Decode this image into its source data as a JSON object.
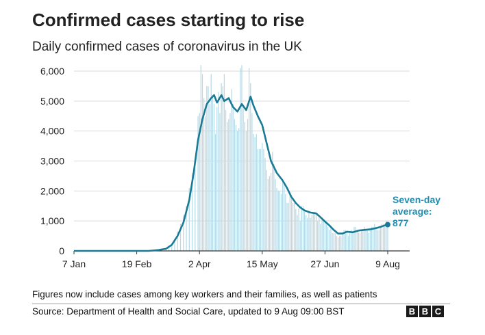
{
  "title": "Confirmed cases starting to rise",
  "subtitle": "Daily confirmed cases of coronavirus in the UK",
  "footnote": "Figures now include cases among key workers and their families, as well as patients",
  "source": "Source: Department of Health and Social Care, updated to 9 Aug 09:00 BST",
  "logo_letters": [
    "B",
    "B",
    "C"
  ],
  "annotation": {
    "line1": "Seven-day",
    "line2": "average:",
    "value": "877"
  },
  "colors": {
    "bars": "#b7dbe8",
    "line": "#1a7a95",
    "annotation": "#1f8db0",
    "grid": "#d9d9d9",
    "axis": "#333333"
  },
  "chart_data": {
    "type": "bar",
    "x_start": "2020-01-07",
    "x_end": "2020-08-09",
    "ylim": [
      0,
      6000
    ],
    "yticks": [
      0,
      1000,
      2000,
      3000,
      4000,
      5000,
      6000
    ],
    "ytick_labels": [
      "0",
      "1,000",
      "2,000",
      "3,000",
      "4,000",
      "5,000",
      "6,000"
    ],
    "xticks": [
      "2020-01-07",
      "2020-02-19",
      "2020-04-02",
      "2020-05-15",
      "2020-06-27",
      "2020-08-09"
    ],
    "xtick_labels": [
      "7 Jan",
      "19 Feb",
      "2 Apr",
      "15 May",
      "27 Jun",
      "9 Aug"
    ],
    "grid": true,
    "series": [
      {
        "type": "bar",
        "points": [
          [
            "2020-03-01",
            10
          ],
          [
            "2020-03-04",
            30
          ],
          [
            "2020-03-07",
            50
          ],
          [
            "2020-03-10",
            70
          ],
          [
            "2020-03-12",
            130
          ],
          [
            "2020-03-14",
            250
          ],
          [
            "2020-03-16",
            400
          ],
          [
            "2020-03-18",
            650
          ],
          [
            "2020-03-20",
            900
          ],
          [
            "2020-03-22",
            1200
          ],
          [
            "2020-03-24",
            1500
          ],
          [
            "2020-03-26",
            2100
          ],
          [
            "2020-03-28",
            2600
          ],
          [
            "2020-03-30",
            2800
          ],
          [
            "2020-04-01",
            4500
          ],
          [
            "2020-04-02",
            4600
          ],
          [
            "2020-04-03",
            6200
          ],
          [
            "2020-04-04",
            5900
          ],
          [
            "2020-04-05",
            5100
          ],
          [
            "2020-04-06",
            4500
          ],
          [
            "2020-04-07",
            5500
          ],
          [
            "2020-04-08",
            5500
          ],
          [
            "2020-04-09",
            4900
          ],
          [
            "2020-04-10",
            5900
          ],
          [
            "2020-04-11",
            5200
          ],
          [
            "2020-04-12",
            4900
          ],
          [
            "2020-04-13",
            3900
          ],
          [
            "2020-04-14",
            4800
          ],
          [
            "2020-04-15",
            5300
          ],
          [
            "2020-04-16",
            4600
          ],
          [
            "2020-04-17",
            5600
          ],
          [
            "2020-04-18",
            5500
          ],
          [
            "2020-04-19",
            5900
          ],
          [
            "2020-04-20",
            4700
          ],
          [
            "2020-04-21",
            4300
          ],
          [
            "2020-04-22",
            4400
          ],
          [
            "2020-04-23",
            4600
          ],
          [
            "2020-04-24",
            5400
          ],
          [
            "2020-04-25",
            4900
          ],
          [
            "2020-04-26",
            4400
          ],
          [
            "2020-04-27",
            4200
          ],
          [
            "2020-04-28",
            4000
          ],
          [
            "2020-04-29",
            4100
          ],
          [
            "2020-04-30",
            6100
          ],
          [
            "2020-05-01",
            6200
          ],
          [
            "2020-05-02",
            4800
          ],
          [
            "2020-05-03",
            4300
          ],
          [
            "2020-05-04",
            4000
          ],
          [
            "2020-05-05",
            4400
          ],
          [
            "2020-05-06",
            6100
          ],
          [
            "2020-05-07",
            5600
          ],
          [
            "2020-05-08",
            4600
          ],
          [
            "2020-05-09",
            3900
          ],
          [
            "2020-05-10",
            3800
          ],
          [
            "2020-05-11",
            3900
          ],
          [
            "2020-05-12",
            3400
          ],
          [
            "2020-05-13",
            3400
          ],
          [
            "2020-05-14",
            3400
          ],
          [
            "2020-05-15",
            3600
          ],
          [
            "2020-05-16",
            3400
          ],
          [
            "2020-05-17",
            3100
          ],
          [
            "2020-05-18",
            2700
          ],
          [
            "2020-05-19",
            2400
          ],
          [
            "2020-05-20",
            2500
          ],
          [
            "2020-05-21",
            2600
          ],
          [
            "2020-05-22",
            3300
          ],
          [
            "2020-05-23",
            2900
          ],
          [
            "2020-05-24",
            2400
          ],
          [
            "2020-05-25",
            2100
          ],
          [
            "2020-05-26",
            2000
          ],
          [
            "2020-05-27",
            2000
          ],
          [
            "2020-05-28",
            1900
          ],
          [
            "2020-05-29",
            2400
          ],
          [
            "2020-05-30",
            2300
          ],
          [
            "2020-05-31",
            1900
          ],
          [
            "2020-06-01",
            1600
          ],
          [
            "2020-06-02",
            1600
          ],
          [
            "2020-06-03",
            1900
          ],
          [
            "2020-06-04",
            1800
          ],
          [
            "2020-06-05",
            1600
          ],
          [
            "2020-06-06",
            1600
          ],
          [
            "2020-06-07",
            1400
          ],
          [
            "2020-06-08",
            1200
          ],
          [
            "2020-06-09",
            1400
          ],
          [
            "2020-06-10",
            1000
          ],
          [
            "2020-06-11",
            1500
          ],
          [
            "2020-06-12",
            1500
          ],
          [
            "2020-06-13",
            1400
          ],
          [
            "2020-06-14",
            1200
          ],
          [
            "2020-06-15",
            1100
          ],
          [
            "2020-06-16",
            1300
          ],
          [
            "2020-06-17",
            1100
          ],
          [
            "2020-06-18",
            1200
          ],
          [
            "2020-06-19",
            1300
          ],
          [
            "2020-06-20",
            1300
          ],
          [
            "2020-06-21",
            1200
          ],
          [
            "2020-06-22",
            1000
          ],
          [
            "2020-06-23",
            1100
          ],
          [
            "2020-06-24",
            900
          ],
          [
            "2020-06-25",
            1100
          ],
          [
            "2020-06-26",
            1000
          ],
          [
            "2020-06-27",
            1000
          ],
          [
            "2020-06-28",
            900
          ],
          [
            "2020-06-29",
            800
          ],
          [
            "2020-06-30",
            700
          ],
          [
            "2020-07-01",
            800
          ],
          [
            "2020-07-02",
            600
          ],
          [
            "2020-07-03",
            600
          ],
          [
            "2020-07-04",
            600
          ],
          [
            "2020-07-05",
            500
          ],
          [
            "2020-07-06",
            450
          ],
          [
            "2020-07-07",
            500
          ],
          [
            "2020-07-08",
            500
          ],
          [
            "2020-07-09",
            600
          ],
          [
            "2020-07-10",
            700
          ],
          [
            "2020-07-11",
            700
          ],
          [
            "2020-07-12",
            600
          ],
          [
            "2020-07-13",
            500
          ],
          [
            "2020-07-14",
            600
          ],
          [
            "2020-07-15",
            700
          ],
          [
            "2020-07-16",
            600
          ],
          [
            "2020-07-17",
            800
          ],
          [
            "2020-07-18",
            800
          ],
          [
            "2020-07-19",
            700
          ],
          [
            "2020-07-20",
            600
          ],
          [
            "2020-07-21",
            600
          ],
          [
            "2020-07-22",
            700
          ],
          [
            "2020-07-23",
            700
          ],
          [
            "2020-07-24",
            800
          ],
          [
            "2020-07-25",
            700
          ],
          [
            "2020-07-26",
            700
          ],
          [
            "2020-07-27",
            600
          ],
          [
            "2020-07-28",
            700
          ],
          [
            "2020-07-29",
            800
          ],
          [
            "2020-07-30",
            800
          ],
          [
            "2020-07-31",
            900
          ],
          [
            "2020-08-01",
            800
          ],
          [
            "2020-08-02",
            700
          ],
          [
            "2020-08-03",
            700
          ],
          [
            "2020-08-04",
            800
          ],
          [
            "2020-08-05",
            900
          ],
          [
            "2020-08-06",
            900
          ],
          [
            "2020-08-07",
            900
          ],
          [
            "2020-08-08",
            1000
          ],
          [
            "2020-08-09",
            900
          ]
        ]
      },
      {
        "type": "line",
        "points": [
          [
            "2020-01-07",
            0
          ],
          [
            "2020-02-27",
            0
          ],
          [
            "2020-03-05",
            30
          ],
          [
            "2020-03-10",
            70
          ],
          [
            "2020-03-14",
            200
          ],
          [
            "2020-03-18",
            500
          ],
          [
            "2020-03-22",
            950
          ],
          [
            "2020-03-26",
            1700
          ],
          [
            "2020-03-29",
            2600
          ],
          [
            "2020-04-01",
            3700
          ],
          [
            "2020-04-04",
            4400
          ],
          [
            "2020-04-07",
            4900
          ],
          [
            "2020-04-10",
            5100
          ],
          [
            "2020-04-12",
            5200
          ],
          [
            "2020-04-14",
            4950
          ],
          [
            "2020-04-17",
            5200
          ],
          [
            "2020-04-19",
            5000
          ],
          [
            "2020-04-22",
            5100
          ],
          [
            "2020-04-25",
            4800
          ],
          [
            "2020-04-28",
            4650
          ],
          [
            "2020-05-01",
            4900
          ],
          [
            "2020-05-04",
            4700
          ],
          [
            "2020-05-07",
            5150
          ],
          [
            "2020-05-09",
            4850
          ],
          [
            "2020-05-12",
            4500
          ],
          [
            "2020-05-15",
            4200
          ],
          [
            "2020-05-18",
            3600
          ],
          [
            "2020-05-21",
            3000
          ],
          [
            "2020-05-25",
            2600
          ],
          [
            "2020-05-29",
            2350
          ],
          [
            "2020-06-01",
            2100
          ],
          [
            "2020-06-04",
            1800
          ],
          [
            "2020-06-07",
            1600
          ],
          [
            "2020-06-10",
            1450
          ],
          [
            "2020-06-13",
            1350
          ],
          [
            "2020-06-17",
            1280
          ],
          [
            "2020-06-21",
            1250
          ],
          [
            "2020-06-24",
            1120
          ],
          [
            "2020-06-27",
            980
          ],
          [
            "2020-06-30",
            850
          ],
          [
            "2020-07-03",
            700
          ],
          [
            "2020-07-06",
            580
          ],
          [
            "2020-07-09",
            580
          ],
          [
            "2020-07-12",
            640
          ],
          [
            "2020-07-16",
            620
          ],
          [
            "2020-07-20",
            680
          ],
          [
            "2020-07-24",
            700
          ],
          [
            "2020-07-28",
            720
          ],
          [
            "2020-08-01",
            760
          ],
          [
            "2020-08-04",
            800
          ],
          [
            "2020-08-07",
            850
          ],
          [
            "2020-08-09",
            877
          ]
        ]
      }
    ]
  }
}
